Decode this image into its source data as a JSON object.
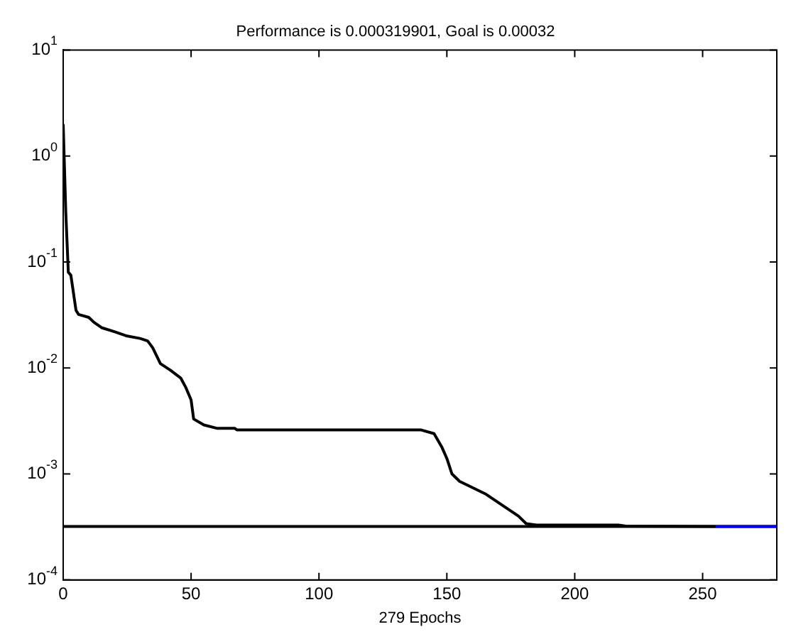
{
  "chart_data": {
    "type": "line",
    "title": "Performance is 0.000319901, Goal is 0.00032",
    "xlabel": "279 Epochs",
    "log": "y",
    "grid": false,
    "legend": false,
    "marker": "none",
    "line_style": "solid",
    "xlim": [
      0,
      279
    ],
    "xticks": [
      0,
      50,
      100,
      150,
      200,
      250
    ],
    "ylim": [
      0.0001,
      10
    ],
    "yticks": [
      {
        "value": 0.0001,
        "label": "10$^{-4}$"
      },
      {
        "value": 0.001,
        "label": "10$^{-3}$"
      },
      {
        "value": 0.01,
        "label": "10$^{-2}$"
      },
      {
        "value": 0.1,
        "label": "10$^{-1}$"
      },
      {
        "value": 1,
        "label": "10$^{0}$"
      },
      {
        "value": 10,
        "label": "10$^{1}$"
      }
    ],
    "ref_lines": [
      {
        "axis": "y",
        "value": 0.00032,
        "color": "#000000"
      }
    ],
    "series": [
      {
        "color": "#000000",
        "x": [
          0,
          1,
          2,
          3,
          5,
          6,
          10,
          12,
          15,
          20,
          25,
          30,
          33,
          35,
          38,
          42,
          46,
          48,
          50,
          51,
          55,
          60,
          67,
          68,
          140,
          145,
          148,
          150,
          152,
          155,
          165,
          172,
          178,
          181,
          185,
          217,
          220,
          255
        ],
        "values": [
          2,
          0.3,
          0.08,
          0.075,
          0.035,
          0.032,
          0.03,
          0.027,
          0.024,
          0.022,
          0.02,
          0.019,
          0.018,
          0.0155,
          0.011,
          0.0095,
          0.008,
          0.0065,
          0.005,
          0.0033,
          0.0029,
          0.0027,
          0.0027,
          0.0026,
          0.0026,
          0.0024,
          0.0018,
          0.0014,
          0.001,
          0.00085,
          0.00065,
          0.0005,
          0.0004,
          0.00034,
          0.00033,
          0.00033,
          0.000322,
          0.00032
        ]
      },
      {
        "color": "#0000ff",
        "x": [
          255,
          279
        ],
        "values": [
          0.000319901,
          0.000319901
        ]
      }
    ]
  }
}
